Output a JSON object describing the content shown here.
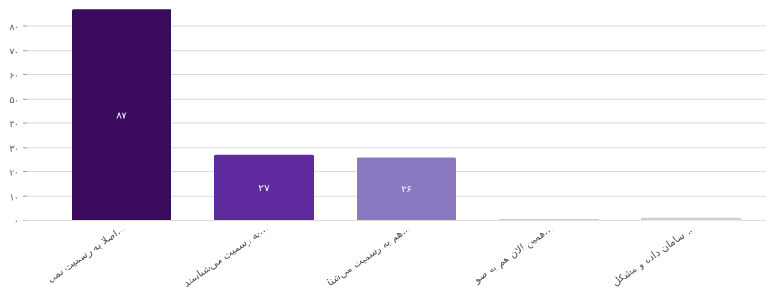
{
  "chart_data": {
    "type": "bar",
    "categories": [
      "اصلا به رسمیت نمی...",
      "به رسمیت می‌شناسند...",
      "هم به رسمیت می‌شنا...",
      "همین الان هم به صو...",
      "سامان داده و مشکل ..."
    ],
    "values": [
      87,
      27,
      26,
      0,
      1
    ],
    "value_labels": [
      "۸۷",
      "۲۷",
      "۲۶",
      "",
      ""
    ],
    "bar_colors": [
      "#3a0a5c",
      "#5e2a9e",
      "#8a79c0",
      "#c9c6de",
      "#d8d8d8"
    ],
    "yticks": [
      0,
      10,
      20,
      30,
      40,
      50,
      60,
      70,
      80
    ],
    "ytick_labels": [
      "۰",
      "۱۰",
      "۲۰",
      "۳۰",
      "۴۰",
      "۵۰",
      "۶۰",
      "۷۰",
      "۸۰"
    ],
    "ylim": [
      0,
      87
    ],
    "grid": true,
    "title": "",
    "xlabel": "",
    "ylabel": ""
  }
}
